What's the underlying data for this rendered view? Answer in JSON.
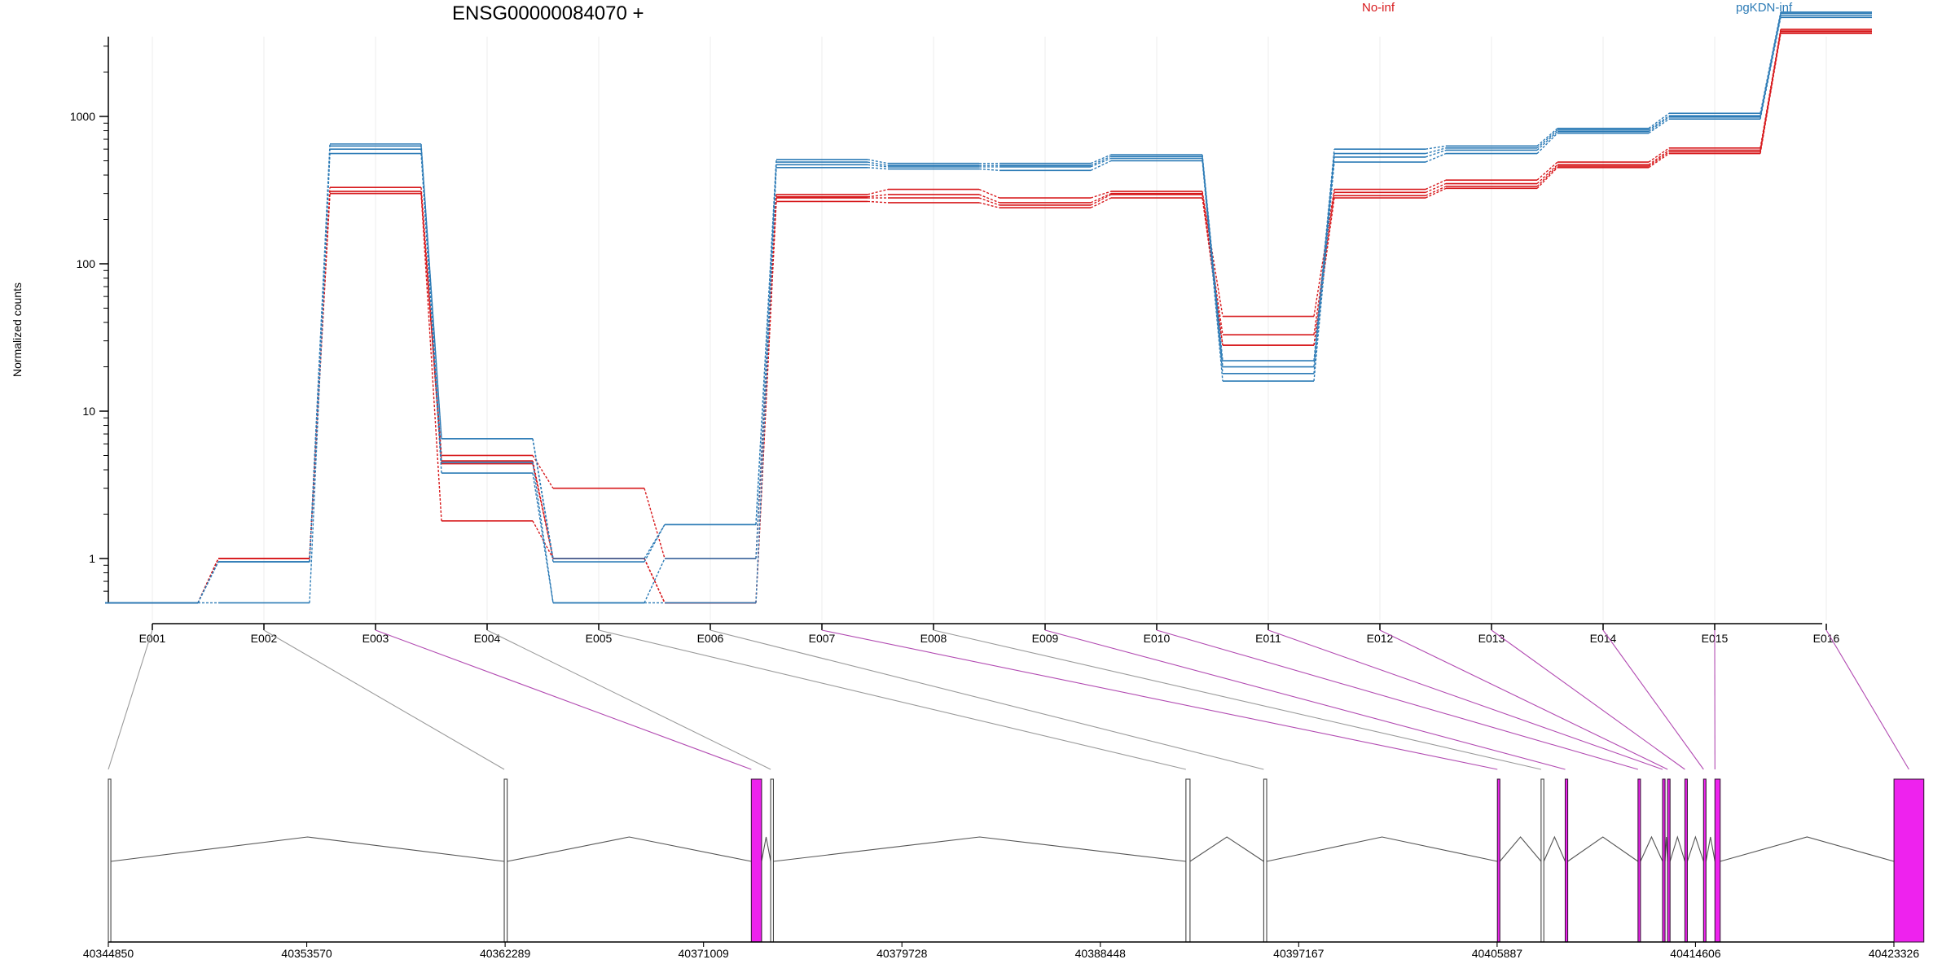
{
  "chart_data": {
    "type": "line",
    "title": "ENSG00000084070 +",
    "ylabel": "Normalized counts",
    "y_scale": "log",
    "y_ticks": [
      1,
      10,
      100,
      1000
    ],
    "y_tick_labels": [
      "1",
      "10",
      "100",
      "1000"
    ],
    "grid": "vertical lines at each exon",
    "categories": [
      "E001",
      "E002",
      "E003",
      "E004",
      "E005",
      "E006",
      "E007",
      "E008",
      "E009",
      "E010",
      "E011",
      "E012",
      "E013",
      "E014",
      "E015",
      "E016"
    ],
    "legend": [
      {
        "name": "No-inf",
        "color": "#d7191c"
      },
      {
        "name": "pgKDN-inf",
        "color": "#2c7bb6"
      }
    ],
    "series": [
      {
        "group": "No-inf",
        "color": "#d7191c",
        "values": [
          0.5,
          1.0,
          330,
          5.0,
          3.0,
          1.0,
          295,
          320,
          280,
          310,
          44,
          320,
          370,
          490,
          610,
          3900
        ]
      },
      {
        "group": "No-inf",
        "color": "#d7191c",
        "values": [
          0.5,
          1.0,
          310,
          4.6,
          1.0,
          0.5,
          285,
          295,
          260,
          300,
          33,
          305,
          350,
          470,
          590,
          3800
        ]
      },
      {
        "group": "No-inf",
        "color": "#d7191c",
        "values": [
          0.5,
          1.0,
          300,
          4.4,
          1.0,
          0.5,
          280,
          280,
          250,
          295,
          28,
          290,
          335,
          460,
          575,
          3750
        ]
      },
      {
        "group": "No-inf",
        "color": "#d7191c",
        "values": [
          0.5,
          1.0,
          300,
          1.8,
          1.0,
          0.5,
          265,
          260,
          240,
          280,
          28,
          280,
          325,
          450,
          560,
          3650
        ]
      },
      {
        "group": "pgKDN-inf",
        "color": "#2c7bb6",
        "values": [
          0.5,
          0.95,
          650,
          6.5,
          1.0,
          1.7,
          510,
          480,
          480,
          550,
          22,
          600,
          630,
          830,
          1050,
          5100
        ]
      },
      {
        "group": "pgKDN-inf",
        "color": "#2c7bb6",
        "values": [
          0.5,
          0.95,
          630,
          6.5,
          0.95,
          1.7,
          490,
          465,
          465,
          535,
          20,
          560,
          610,
          810,
          1010,
          5000
        ]
      },
      {
        "group": "pgKDN-inf",
        "color": "#2c7bb6",
        "values": [
          0.5,
          0.95,
          600,
          4.5,
          0.5,
          1.0,
          470,
          455,
          455,
          520,
          18,
          530,
          590,
          790,
          990,
          4850
        ]
      },
      {
        "group": "pgKDN-inf",
        "color": "#2c7bb6",
        "values": [
          0.5,
          0.5,
          560,
          3.8,
          0.5,
          0.5,
          450,
          440,
          430,
          500,
          16,
          490,
          560,
          770,
          960,
          4700
        ]
      }
    ],
    "gene_model": {
      "coordinate_ticks": [
        "40344850",
        "40353570",
        "40362289",
        "40371009",
        "40379728",
        "40388448",
        "40397167",
        "40405887",
        "40414606",
        "40423326"
      ],
      "coordinate_values": [
        40344850,
        40353570,
        40362289,
        40371009,
        40379728,
        40388448,
        40397167,
        40405887,
        40414606,
        40423326
      ],
      "exons": [
        {
          "id": "E001",
          "start": 40344850,
          "end": 40344960,
          "highlighted": false
        },
        {
          "id": "E002",
          "start": 40362250,
          "end": 40362380,
          "highlighted": false
        },
        {
          "id": "E003",
          "start": 40373110,
          "end": 40373560,
          "highlighted": true
        },
        {
          "id": "E004",
          "start": 40373960,
          "end": 40374080,
          "highlighted": false
        },
        {
          "id": "E005",
          "start": 40392210,
          "end": 40392390,
          "highlighted": false
        },
        {
          "id": "E006",
          "start": 40395630,
          "end": 40395760,
          "highlighted": false
        },
        {
          "id": "E007",
          "start": 40405900,
          "end": 40406000,
          "highlighted": true
        },
        {
          "id": "E008",
          "start": 40407820,
          "end": 40407940,
          "highlighted": false
        },
        {
          "id": "E009",
          "start": 40408880,
          "end": 40408990,
          "highlighted": true
        },
        {
          "id": "E010",
          "start": 40412080,
          "end": 40412180,
          "highlighted": true
        },
        {
          "id": "E011",
          "start": 40413160,
          "end": 40413260,
          "highlighted": true
        },
        {
          "id": "E012",
          "start": 40413380,
          "end": 40413450,
          "highlighted": true
        },
        {
          "id": "E013",
          "start": 40414140,
          "end": 40414240,
          "highlighted": true
        },
        {
          "id": "E014",
          "start": 40414960,
          "end": 40415060,
          "highlighted": true
        },
        {
          "id": "E015",
          "start": 40415460,
          "end": 40415690,
          "highlighted": true
        },
        {
          "id": "E016",
          "start": 40423330,
          "end": 40424640,
          "highlighted": true
        }
      ],
      "exon_color": "#ee22ee",
      "intron_color": "#555555"
    }
  }
}
